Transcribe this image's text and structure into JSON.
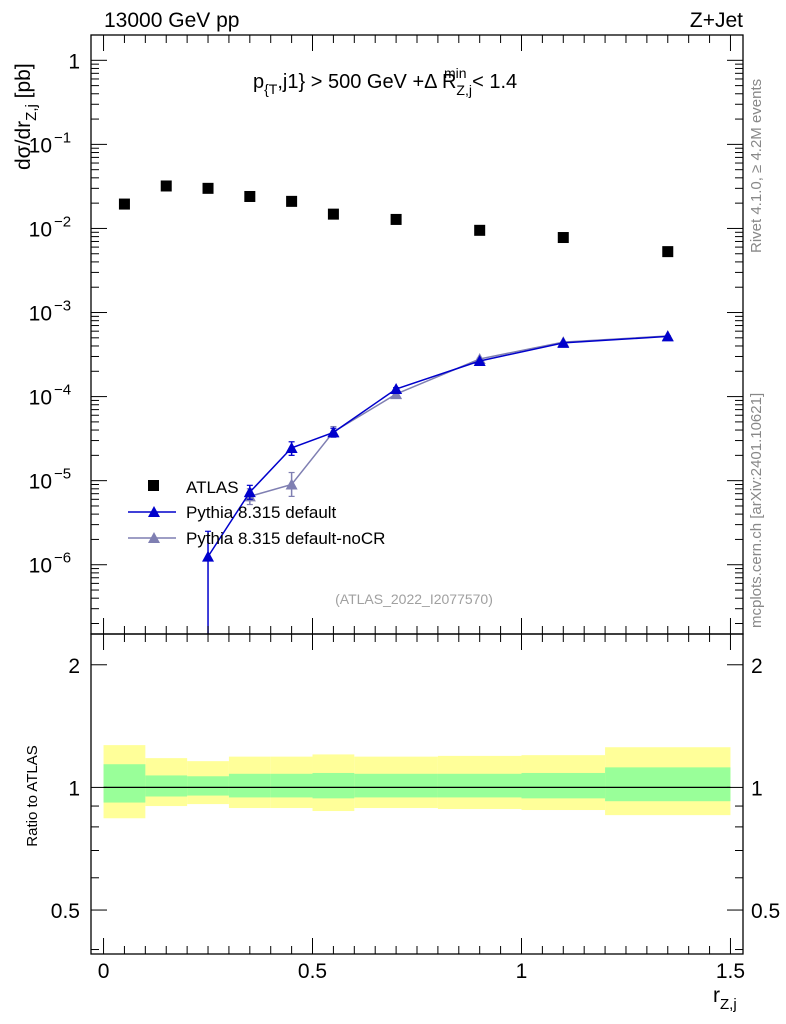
{
  "header": {
    "left": "13000 GeV pp",
    "right": "Z+Jet"
  },
  "side_labels": {
    "rivet": "Rivet 4.1.0, ≥ 4.2M events",
    "mcplots": "mcplots.cern.ch [arXiv:2401.10621]"
  },
  "watermark": "(ATLAS_2022_I2077570)",
  "colors": {
    "data": "#000000",
    "pythia_default": "#0000cc",
    "pythia_nocr": "#7f7fb2",
    "band_inner": "#99ff99",
    "band_outer": "#ffff99"
  },
  "chart_data": [
    {
      "type": "scatter",
      "title": "p_{T},j1} > 500 GeV +Δ R^min_Z,j < 1.4",
      "title_parts": {
        "p": "p",
        "p_sub": "{T",
        "mid": ",j1} > 500 GeV +Δ R",
        "r_sub": "Z,j",
        "r_sup": "min",
        "tail": " < 1.4"
      },
      "ylabel": "dσ/dr_Z,j [pb]",
      "ylabel_parts": {
        "main": "dσ/dr",
        "sub": "Z,j",
        "tail": " [pb]"
      },
      "xlabel": "r_Z,j",
      "y_scale": "log",
      "ylim": [
        1.5e-07,
        2.0
      ],
      "xlim": [
        -0.03,
        1.53
      ],
      "y_ticks": [
        {
          "value": 1,
          "label": "1"
        },
        {
          "value": 0.1,
          "base": "10",
          "exp": "−1"
        },
        {
          "value": 0.01,
          "base": "10",
          "exp": "−2"
        },
        {
          "value": 0.001,
          "base": "10",
          "exp": "−3"
        },
        {
          "value": 0.0001,
          "base": "10",
          "exp": "−4"
        },
        {
          "value": 1e-05,
          "base": "10",
          "exp": "−5"
        },
        {
          "value": 1e-06,
          "base": "10",
          "exp": "−6"
        }
      ],
      "legend_position": "bottom-left",
      "series": [
        {
          "name": "ATLAS",
          "marker": "square",
          "x": [
            0.05,
            0.15,
            0.25,
            0.35,
            0.45,
            0.55,
            0.7,
            0.9,
            1.1,
            1.35
          ],
          "y": [
            0.0195,
            0.032,
            0.03,
            0.024,
            0.021,
            0.0148,
            0.0128,
            0.0095,
            0.0078,
            0.0053
          ]
        },
        {
          "name": "Pythia 8.315 default",
          "marker": "triangle",
          "x": [
            0.25,
            0.35,
            0.45,
            0.55,
            0.7,
            0.9,
            1.1,
            1.35
          ],
          "y": [
            1.25e-06,
            7.3e-06,
            2.45e-05,
            3.75e-05,
            0.000123,
            0.000265,
            0.000435,
            0.00052
          ],
          "y_low": [
            1e-08,
            6e-06,
            2e-05,
            3.3e-05,
            0.000118,
            0.00026,
            0.00043,
            0.000515
          ],
          "y_high": [
            2.5e-06,
            8.8e-06,
            2.9e-05,
            4.2e-05,
            0.000128,
            0.00027,
            0.00044,
            0.000525
          ]
        },
        {
          "name": "Pythia 8.315 default-noCR",
          "marker": "triangle",
          "x": [
            0.35,
            0.45,
            0.55,
            0.7,
            0.9,
            1.1,
            1.35
          ],
          "y": [
            6.5e-06,
            9e-06,
            3.8e-05,
            0.000107,
            0.00028,
            0.000445,
            0.000525
          ],
          "y_low": [
            5.2e-06,
            6.5e-06,
            3.3e-05,
            0.000103,
            0.000275,
            0.00044,
            0.00052
          ],
          "y_high": [
            8e-06,
            1.25e-05,
            4.4e-05,
            0.000111,
            0.000285,
            0.00045,
            0.00053
          ]
        }
      ]
    },
    {
      "type": "area",
      "ylabel": "Ratio to ATLAS",
      "xlabel": "r_Z,j",
      "y_scale": "log",
      "ylim": [
        0.39,
        2.38
      ],
      "xlim": [
        -0.03,
        1.53
      ],
      "y_ticks": [
        0.5,
        1,
        2
      ],
      "y_tick_labels": [
        "0.5",
        "1",
        "2"
      ],
      "x_ticks": [
        0,
        0.5,
        1,
        1.5
      ],
      "x_tick_labels": [
        "0",
        "0.5",
        "1",
        "1.5"
      ],
      "reference_line": 1,
      "bins": [
        {
          "lo": 0.0,
          "hi": 0.1,
          "in_lo": 0.918,
          "in_hi": 1.14,
          "out_lo": 0.84,
          "out_hi": 1.27
        },
        {
          "lo": 0.1,
          "hi": 0.2,
          "in_lo": 0.95,
          "in_hi": 1.07,
          "out_lo": 0.9,
          "out_hi": 1.18
        },
        {
          "lo": 0.2,
          "hi": 0.3,
          "in_lo": 0.955,
          "in_hi": 1.065,
          "out_lo": 0.91,
          "out_hi": 1.16
        },
        {
          "lo": 0.3,
          "hi": 0.4,
          "in_lo": 0.945,
          "in_hi": 1.08,
          "out_lo": 0.89,
          "out_hi": 1.19
        },
        {
          "lo": 0.4,
          "hi": 0.5,
          "in_lo": 0.945,
          "in_hi": 1.08,
          "out_lo": 0.89,
          "out_hi": 1.19
        },
        {
          "lo": 0.5,
          "hi": 0.6,
          "in_lo": 0.94,
          "in_hi": 1.085,
          "out_lo": 0.875,
          "out_hi": 1.205
        },
        {
          "lo": 0.6,
          "hi": 0.8,
          "in_lo": 0.945,
          "in_hi": 1.08,
          "out_lo": 0.89,
          "out_hi": 1.19
        },
        {
          "lo": 0.8,
          "hi": 1.0,
          "in_lo": 0.945,
          "in_hi": 1.08,
          "out_lo": 0.885,
          "out_hi": 1.195
        },
        {
          "lo": 1.0,
          "hi": 1.2,
          "in_lo": 0.94,
          "in_hi": 1.085,
          "out_lo": 0.88,
          "out_hi": 1.2
        },
        {
          "lo": 1.2,
          "hi": 1.5,
          "in_lo": 0.925,
          "in_hi": 1.12,
          "out_lo": 0.855,
          "out_hi": 1.255
        }
      ]
    }
  ]
}
